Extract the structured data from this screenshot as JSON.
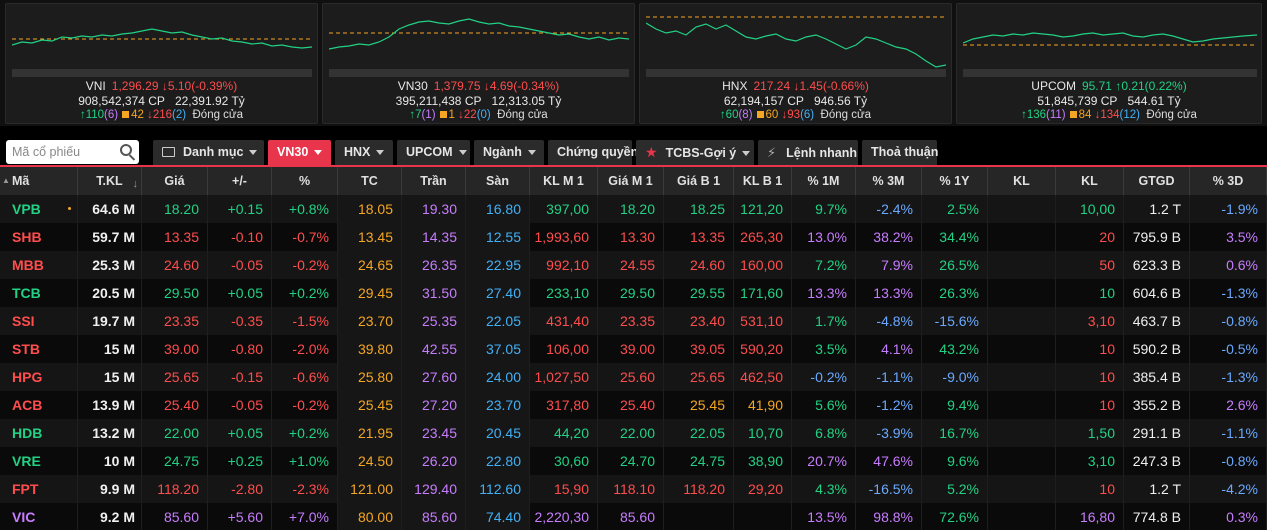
{
  "indices": [
    {
      "name": "VNI",
      "value": "1,296.29",
      "change": "5.10(-0.39%)",
      "volume": "908,542,374 CP",
      "turnover": "22,391.92 Tỷ",
      "up": "110",
      "up_ceil": "(6)",
      "unch": "42",
      "down": "216",
      "down_floor": "(2)",
      "status": "Đóng cửa",
      "color": "#ff4d4d"
    },
    {
      "name": "VN30",
      "value": "1,379.75",
      "change": "4.69(-0.34%)",
      "volume": "395,211,438 CP",
      "turnover": "12,313.05 Tỷ",
      "up": "7",
      "up_ceil": "(1)",
      "unch": "1",
      "down": "22",
      "down_floor": "(0)",
      "status": "Đóng cửa",
      "color": "#ff4d4d"
    },
    {
      "name": "HNX",
      "value": "217.24",
      "change": "1.45(-0.66%)",
      "volume": "62,194,157 CP",
      "turnover": "946.56 Tỷ",
      "up": "60",
      "up_ceil": "(8)",
      "unch": "60",
      "down": "93",
      "down_floor": "(6)",
      "status": "Đóng cửa",
      "color": "#ff4d4d"
    },
    {
      "name": "UPCOM",
      "value": "95.71",
      "change": "0.21(0.22%)",
      "volume": "51,845,739 CP",
      "turnover": "544.61 Tỷ",
      "up": "136",
      "up_ceil": "(11)",
      "unch": "84",
      "down": "134",
      "down_floor": "(12)",
      "status": "Đóng cửa",
      "color": "#22d184"
    }
  ],
  "search": {
    "placeholder": "Mã cổ phiếu"
  },
  "tabs": [
    {
      "label": "Danh mục",
      "active": false
    },
    {
      "label": "VN30",
      "active": true
    },
    {
      "label": "HNX",
      "active": false
    },
    {
      "label": "UPCOM",
      "active": false
    },
    {
      "label": "Ngành",
      "active": false
    },
    {
      "label": "Chứng quyền",
      "active": false
    },
    {
      "label": "TCBS-Gợi ý",
      "active": false
    },
    {
      "label": "Lệnh nhanh",
      "active": false
    },
    {
      "label": "Thoả thuận",
      "active": false
    }
  ],
  "columns": [
    "Mã",
    "T.KL",
    "Giá",
    "+/-",
    "%",
    "TC",
    "Trần",
    "Sàn",
    "KL M 1",
    "Giá M 1",
    "Giá B 1",
    "KL B 1",
    "% 1M",
    "% 3M",
    "% 1Y",
    "KL",
    "KL",
    "GTGD",
    "% 3D"
  ],
  "colors": {
    "up": "#22d184",
    "down": "#ff4d4d",
    "ref": "#f5a623",
    "ceil": "#c77dff",
    "floor": "#42b0f5",
    "accent": "#e8354b"
  },
  "rows": [
    {
      "sym": "VPB",
      "tkl": "64.6 M",
      "price": "18.20",
      "chg": "+0.15",
      "pct": "+0.8%",
      "tc": "18.05",
      "tran": "19.30",
      "san": "16.80",
      "klm1": "397,00",
      "gm1": "18.20",
      "gb1": "18.25",
      "klb1": "121,20",
      "p1m": "9.7%",
      "p3m": "-2.4%",
      "p1y": "2.5%",
      "kl1": "",
      "kl2": "10,00",
      "gtgd": "1.2 T",
      "p3d": "-1.9%",
      "dir": "up",
      "mdir": "up",
      "bdir": "up"
    },
    {
      "sym": "SHB",
      "tkl": "59.7 M",
      "price": "13.35",
      "chg": "-0.10",
      "pct": "-0.7%",
      "tc": "13.45",
      "tran": "14.35",
      "san": "12.55",
      "klm1": "1,993,60",
      "gm1": "13.30",
      "gb1": "13.35",
      "klb1": "265,30",
      "p1m": "13.0%",
      "p3m": "38.2%",
      "p1y": "34.4%",
      "kl1": "",
      "kl2": "20",
      "gtgd": "795.9 B",
      "p3d": "3.5%",
      "dir": "down",
      "mdir": "down",
      "bdir": "down"
    },
    {
      "sym": "MBB",
      "tkl": "25.3 M",
      "price": "24.60",
      "chg": "-0.05",
      "pct": "-0.2%",
      "tc": "24.65",
      "tran": "26.35",
      "san": "22.95",
      "klm1": "992,10",
      "gm1": "24.55",
      "gb1": "24.60",
      "klb1": "160,00",
      "p1m": "7.2%",
      "p3m": "7.9%",
      "p1y": "26.5%",
      "kl1": "",
      "kl2": "50",
      "gtgd": "623.3 B",
      "p3d": "0.6%",
      "dir": "down",
      "mdir": "down",
      "bdir": "down"
    },
    {
      "sym": "TCB",
      "tkl": "20.5 M",
      "price": "29.50",
      "chg": "+0.05",
      "pct": "+0.2%",
      "tc": "29.45",
      "tran": "31.50",
      "san": "27.40",
      "klm1": "233,10",
      "gm1": "29.50",
      "gb1": "29.55",
      "klb1": "171,60",
      "p1m": "13.3%",
      "p3m": "13.3%",
      "p1y": "26.3%",
      "kl1": "",
      "kl2": "10",
      "gtgd": "604.6 B",
      "p3d": "-1.3%",
      "dir": "up",
      "mdir": "up",
      "bdir": "up"
    },
    {
      "sym": "SSI",
      "tkl": "19.7 M",
      "price": "23.35",
      "chg": "-0.35",
      "pct": "-1.5%",
      "tc": "23.70",
      "tran": "25.35",
      "san": "22.05",
      "klm1": "431,40",
      "gm1": "23.35",
      "gb1": "23.40",
      "klb1": "531,10",
      "p1m": "1.7%",
      "p3m": "-4.8%",
      "p1y": "-15.6%",
      "kl1": "",
      "kl2": "3,10",
      "gtgd": "463.7 B",
      "p3d": "-0.8%",
      "dir": "down",
      "mdir": "down",
      "bdir": "down"
    },
    {
      "sym": "STB",
      "tkl": "15 M",
      "price": "39.00",
      "chg": "-0.80",
      "pct": "-2.0%",
      "tc": "39.80",
      "tran": "42.55",
      "san": "37.05",
      "klm1": "106,00",
      "gm1": "39.00",
      "gb1": "39.05",
      "klb1": "590,20",
      "p1m": "3.5%",
      "p3m": "4.1%",
      "p1y": "43.2%",
      "kl1": "",
      "kl2": "10",
      "gtgd": "590.2 B",
      "p3d": "-0.5%",
      "dir": "down",
      "mdir": "down",
      "bdir": "down"
    },
    {
      "sym": "HPG",
      "tkl": "15 M",
      "price": "25.65",
      "chg": "-0.15",
      "pct": "-0.6%",
      "tc": "25.80",
      "tran": "27.60",
      "san": "24.00",
      "klm1": "1,027,50",
      "gm1": "25.60",
      "gb1": "25.65",
      "klb1": "462,50",
      "p1m": "-0.2%",
      "p3m": "-1.1%",
      "p1y": "-9.0%",
      "kl1": "",
      "kl2": "10",
      "gtgd": "385.4 B",
      "p3d": "-1.3%",
      "dir": "down",
      "mdir": "down",
      "bdir": "down"
    },
    {
      "sym": "ACB",
      "tkl": "13.9 M",
      "price": "25.40",
      "chg": "-0.05",
      "pct": "-0.2%",
      "tc": "25.45",
      "tran": "27.20",
      "san": "23.70",
      "klm1": "317,80",
      "gm1": "25.40",
      "gb1": "25.45",
      "klb1": "41,90",
      "p1m": "5.6%",
      "p3m": "-1.2%",
      "p1y": "9.4%",
      "kl1": "",
      "kl2": "10",
      "gtgd": "355.2 B",
      "p3d": "2.6%",
      "dir": "down",
      "mdir": "down",
      "bdir": "ref"
    },
    {
      "sym": "HDB",
      "tkl": "13.2 M",
      "price": "22.00",
      "chg": "+0.05",
      "pct": "+0.2%",
      "tc": "21.95",
      "tran": "23.45",
      "san": "20.45",
      "klm1": "44,20",
      "gm1": "22.00",
      "gb1": "22.05",
      "klb1": "10,70",
      "p1m": "6.8%",
      "p3m": "-3.9%",
      "p1y": "16.7%",
      "kl1": "",
      "kl2": "1,50",
      "gtgd": "291.1 B",
      "p3d": "-1.1%",
      "dir": "up",
      "mdir": "up",
      "bdir": "up"
    },
    {
      "sym": "VRE",
      "tkl": "10 M",
      "price": "24.75",
      "chg": "+0.25",
      "pct": "+1.0%",
      "tc": "24.50",
      "tran": "26.20",
      "san": "22.80",
      "klm1": "30,60",
      "gm1": "24.70",
      "gb1": "24.75",
      "klb1": "38,90",
      "p1m": "20.7%",
      "p3m": "47.6%",
      "p1y": "9.6%",
      "kl1": "",
      "kl2": "3,10",
      "gtgd": "247.3 B",
      "p3d": "-0.8%",
      "dir": "up",
      "mdir": "up",
      "bdir": "up"
    },
    {
      "sym": "FPT",
      "tkl": "9.9 M",
      "price": "118.20",
      "chg": "-2.80",
      "pct": "-2.3%",
      "tc": "121.00",
      "tran": "129.40",
      "san": "112.60",
      "klm1": "15,90",
      "gm1": "118.10",
      "gb1": "118.20",
      "klb1": "29,20",
      "p1m": "4.3%",
      "p3m": "-16.5%",
      "p1y": "5.2%",
      "kl1": "",
      "kl2": "10",
      "gtgd": "1.2 T",
      "p3d": "-4.2%",
      "dir": "down",
      "mdir": "down",
      "bdir": "down"
    },
    {
      "sym": "VIC",
      "tkl": "9.2 M",
      "price": "85.60",
      "chg": "+5.60",
      "pct": "+7.0%",
      "tc": "80.00",
      "tran": "85.60",
      "san": "74.40",
      "klm1": "2,220,30",
      "gm1": "85.60",
      "gb1": "",
      "klb1": "",
      "p1m": "13.5%",
      "p3m": "98.8%",
      "p1y": "72.6%",
      "kl1": "",
      "kl2": "16,80",
      "gtgd": "774.8 B",
      "p3d": "0.3%",
      "dir": "ceil",
      "mdir": "ceil",
      "bdir": "up"
    }
  ]
}
